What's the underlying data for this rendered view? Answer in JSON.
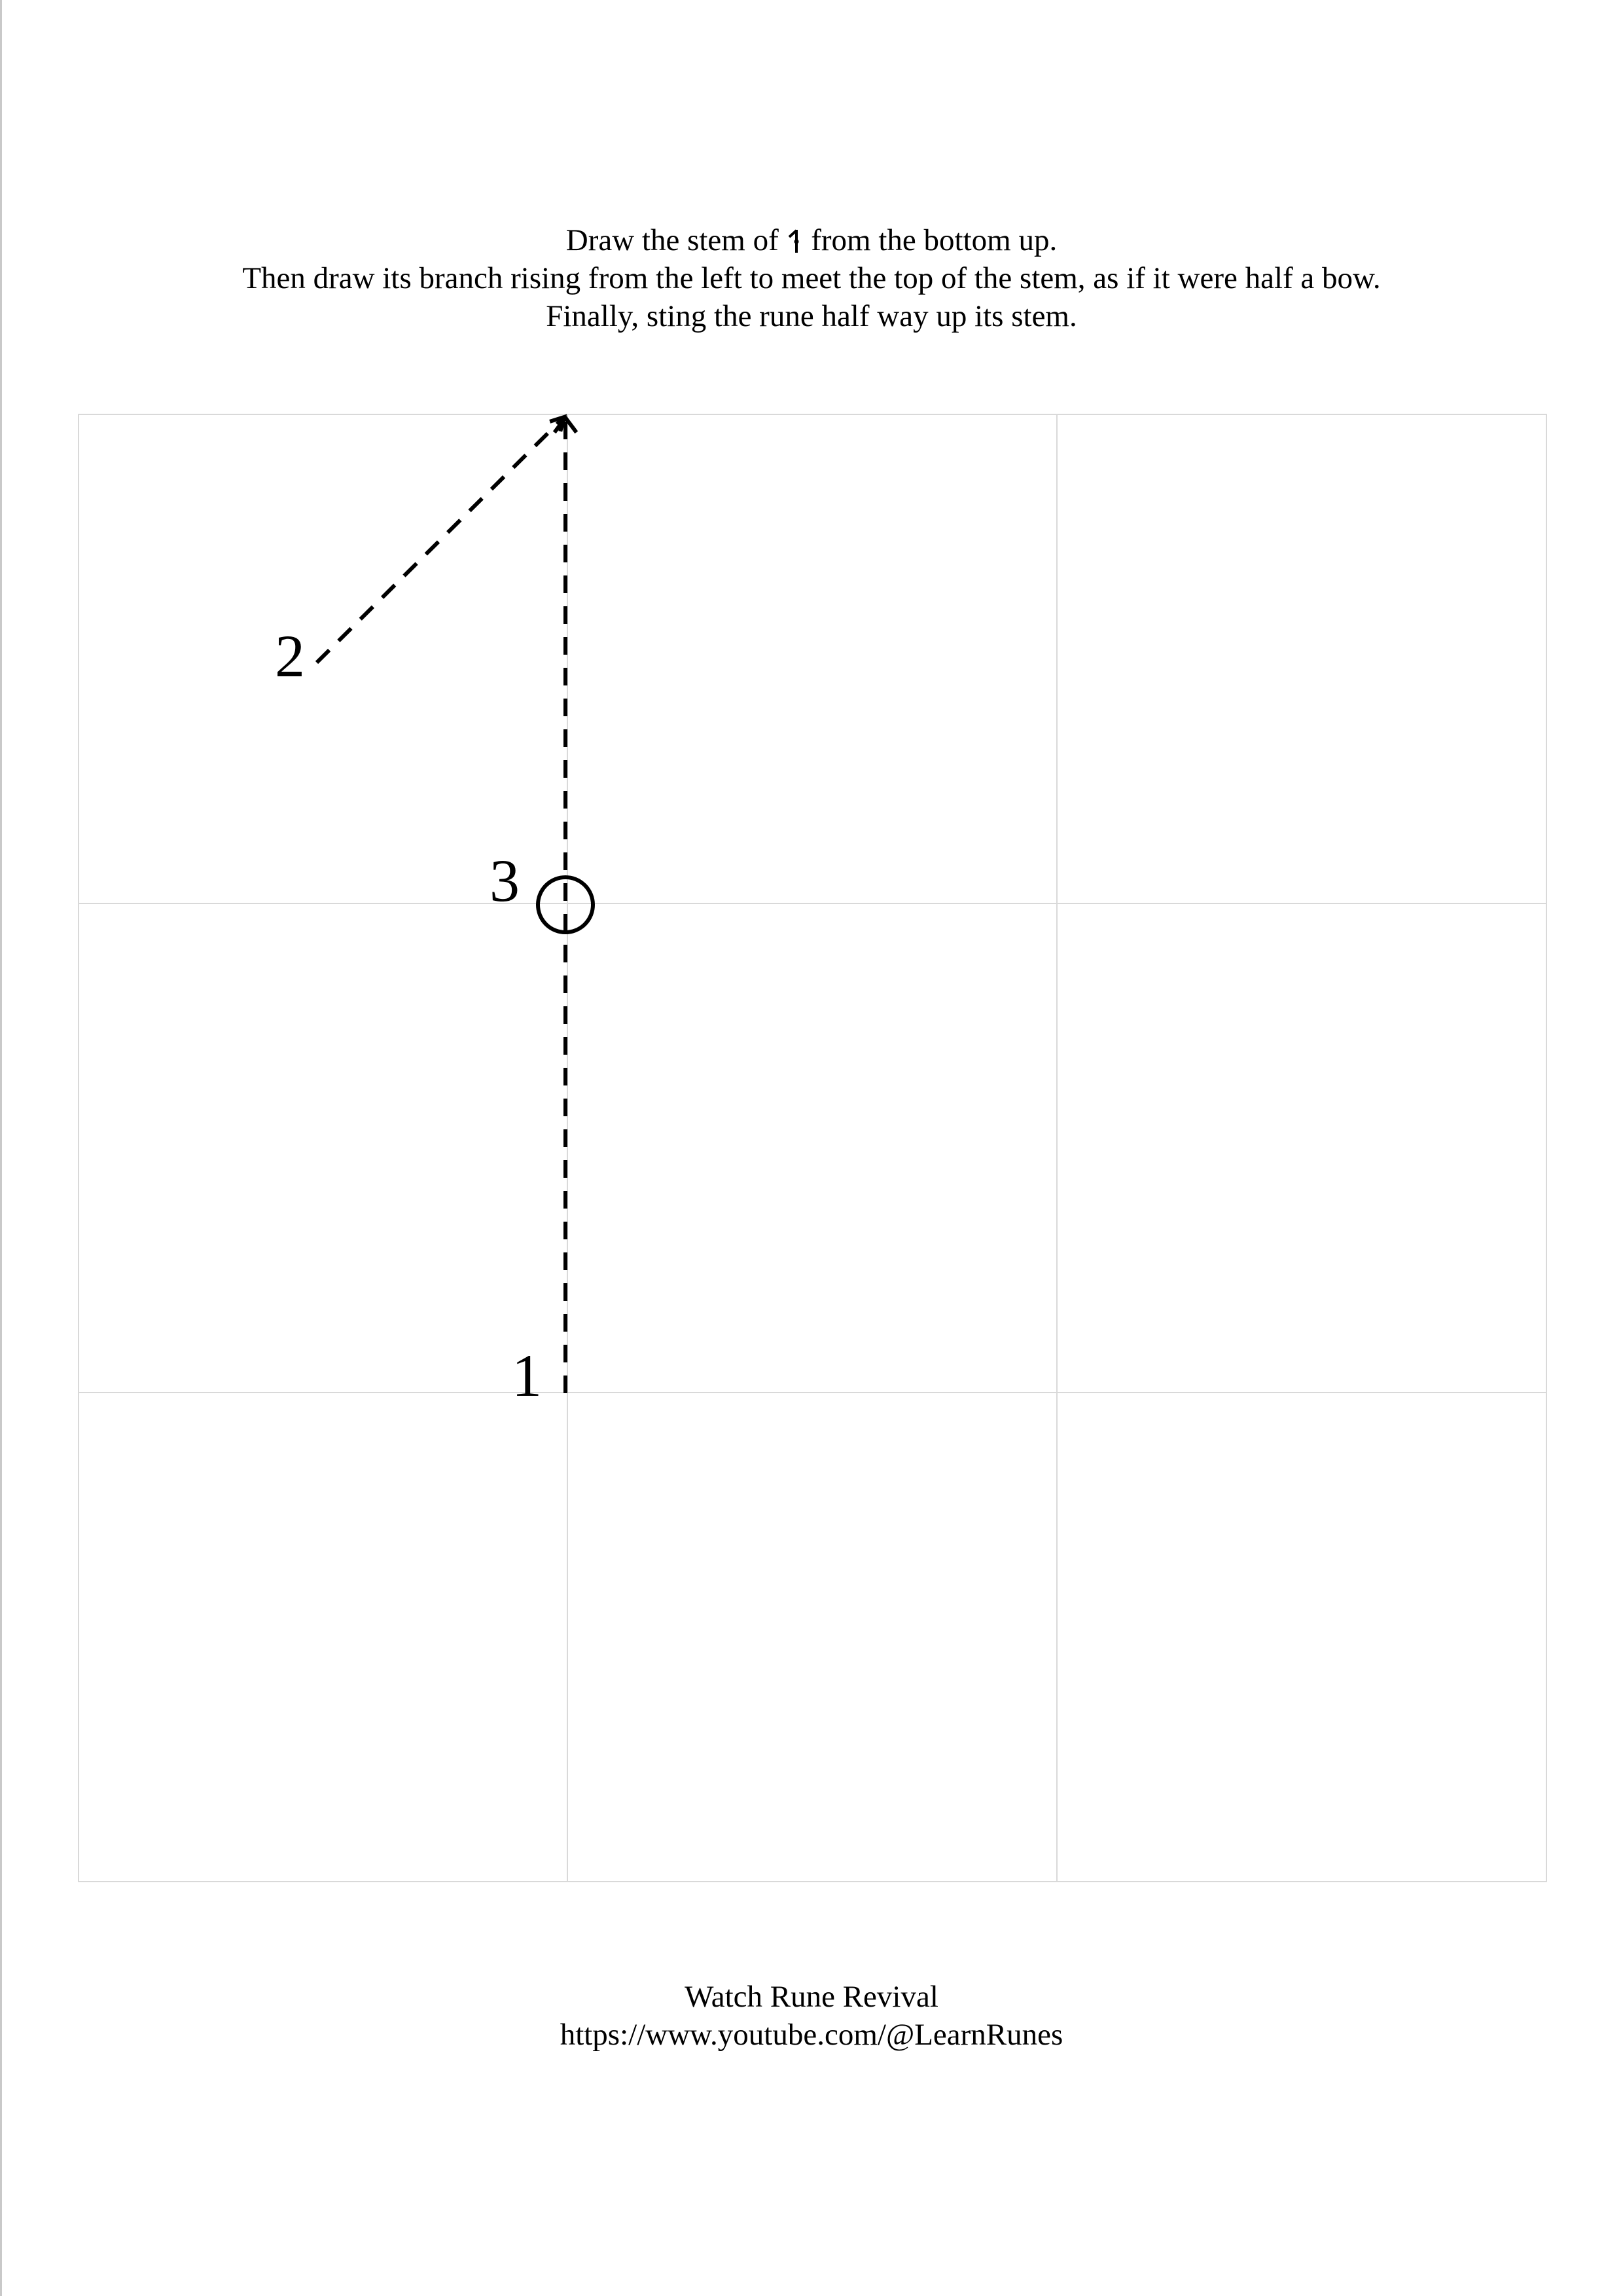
{
  "instructions": {
    "line1_before": "Draw the stem of",
    "line1_after": "from the bottom up.",
    "line2": "Then draw its branch rising from the left to meet the top of the stem, as if it were half a bow.",
    "line3": "Finally, sting the rune half way up its stem."
  },
  "diagram": {
    "step_labels": [
      "1",
      "2",
      "3"
    ]
  },
  "footer": {
    "title": "Watch Rune Revival",
    "url": "https://www.youtube.com/@LearnRunes"
  }
}
